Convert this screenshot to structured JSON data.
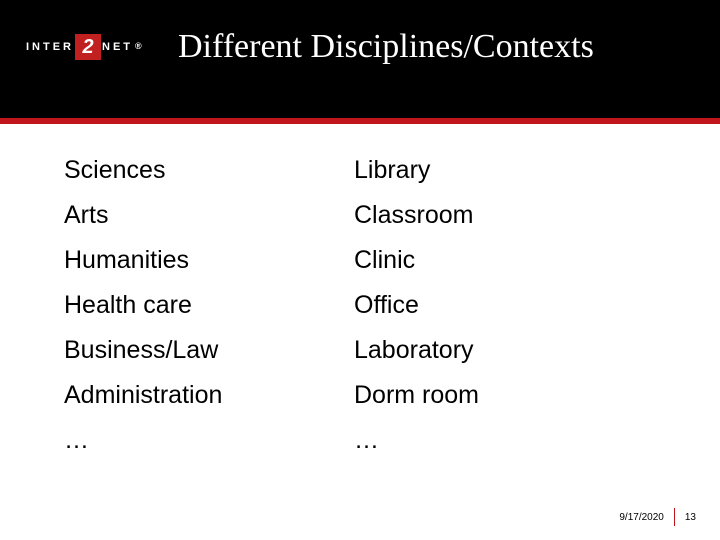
{
  "header": {
    "logo_left": "INTER",
    "logo_badge": "2",
    "logo_right": "NET",
    "logo_reg": "®",
    "title": "Different Disciplines/Contexts"
  },
  "columns": {
    "left": [
      "Sciences",
      "Arts",
      "Humanities",
      "Health care",
      "Business/Law",
      "Administration",
      "…"
    ],
    "right": [
      "Library",
      "Classroom",
      "Clinic",
      "Office",
      "Laboratory",
      "Dorm room",
      "…"
    ]
  },
  "footer": {
    "date": "9/17/2020",
    "page": "13"
  },
  "colors": {
    "header_bg": "#000000",
    "accent_red": "#c0151c",
    "logo_red": "#c02020",
    "text": "#000000",
    "bg": "#ffffff"
  }
}
